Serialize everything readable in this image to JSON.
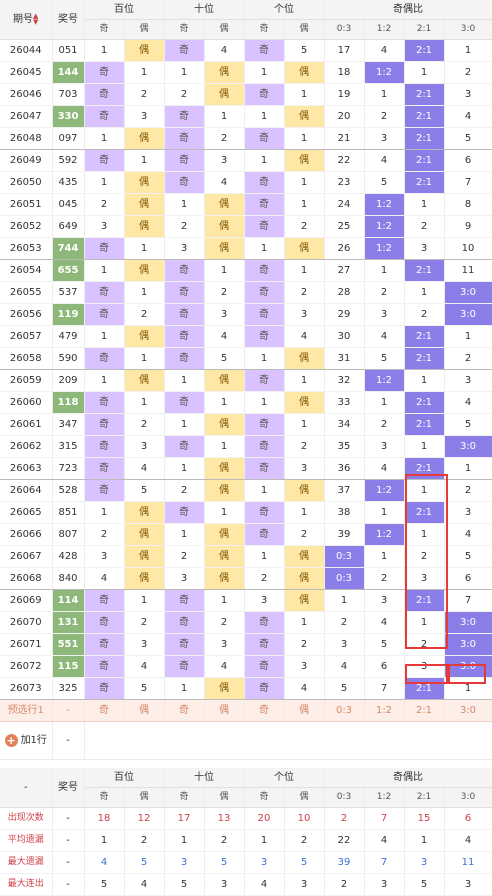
{
  "header": {
    "issue_label": "期号",
    "prize_label": "奖号",
    "hundreds_label": "百位",
    "tens_label": "十位",
    "ones_label": "个位",
    "ratio_label": "奇偶比",
    "odd": "奇",
    "even": "偶",
    "ratios": [
      "0:3",
      "1:2",
      "2:1",
      "3:0"
    ]
  },
  "rows": [
    {
      "issue": "26044",
      "num": "051",
      "won": false,
      "h": [
        "1",
        "偶"
      ],
      "hc": [
        "",
        "o"
      ],
      "t": [
        "奇",
        "4"
      ],
      "tc": [
        "j",
        ""
      ],
      "u": [
        "奇",
        "5"
      ],
      "uc": [
        "j",
        ""
      ],
      "r": [
        "17",
        "4",
        "2:1",
        "1"
      ],
      "rc": [
        "",
        "",
        "hot",
        ""
      ],
      "grpend": false
    },
    {
      "issue": "26045",
      "num": "144",
      "won": true,
      "h": [
        "奇",
        "1"
      ],
      "hc": [
        "j",
        ""
      ],
      "t": [
        "1",
        "偶"
      ],
      "tc": [
        "",
        "o"
      ],
      "u": [
        "1",
        "偶"
      ],
      "uc": [
        "",
        "o"
      ],
      "r": [
        "18",
        "1:2",
        "1",
        "2"
      ],
      "rc": [
        "",
        "hot",
        "",
        ""
      ],
      "grpend": false
    },
    {
      "issue": "26046",
      "num": "703",
      "won": false,
      "h": [
        "奇",
        "2"
      ],
      "hc": [
        "j",
        ""
      ],
      "t": [
        "2",
        "偶"
      ],
      "tc": [
        "",
        "o"
      ],
      "u": [
        "奇",
        "1"
      ],
      "uc": [
        "j",
        ""
      ],
      "r": [
        "19",
        "1",
        "2:1",
        "3"
      ],
      "rc": [
        "",
        "",
        "hot",
        ""
      ],
      "grpend": false
    },
    {
      "issue": "26047",
      "num": "330",
      "won": true,
      "h": [
        "奇",
        "3"
      ],
      "hc": [
        "j",
        ""
      ],
      "t": [
        "奇",
        "1"
      ],
      "tc": [
        "j",
        ""
      ],
      "u": [
        "1",
        "偶"
      ],
      "uc": [
        "",
        "o"
      ],
      "r": [
        "20",
        "2",
        "2:1",
        "4"
      ],
      "rc": [
        "",
        "",
        "hot",
        ""
      ],
      "grpend": false
    },
    {
      "issue": "26048",
      "num": "097",
      "won": false,
      "h": [
        "1",
        "偶"
      ],
      "hc": [
        "",
        "o"
      ],
      "t": [
        "奇",
        "2"
      ],
      "tc": [
        "j",
        ""
      ],
      "u": [
        "奇",
        "1"
      ],
      "uc": [
        "j",
        ""
      ],
      "r": [
        "21",
        "3",
        "2:1",
        "5"
      ],
      "rc": [
        "",
        "",
        "hot",
        ""
      ],
      "grpend": true
    },
    {
      "issue": "26049",
      "num": "592",
      "won": false,
      "h": [
        "奇",
        "1"
      ],
      "hc": [
        "j",
        ""
      ],
      "t": [
        "奇",
        "3"
      ],
      "tc": [
        "j",
        ""
      ],
      "u": [
        "1",
        "偶"
      ],
      "uc": [
        "",
        "o"
      ],
      "r": [
        "22",
        "4",
        "2:1",
        "6"
      ],
      "rc": [
        "",
        "",
        "hot",
        ""
      ],
      "grpend": false
    },
    {
      "issue": "26050",
      "num": "435",
      "won": false,
      "h": [
        "1",
        "偶"
      ],
      "hc": [
        "",
        "o"
      ],
      "t": [
        "奇",
        "4"
      ],
      "tc": [
        "j",
        ""
      ],
      "u": [
        "奇",
        "1"
      ],
      "uc": [
        "j",
        ""
      ],
      "r": [
        "23",
        "5",
        "2:1",
        "7"
      ],
      "rc": [
        "",
        "",
        "hot",
        ""
      ],
      "grpend": false
    },
    {
      "issue": "26051",
      "num": "045",
      "won": false,
      "h": [
        "2",
        "偶"
      ],
      "hc": [
        "",
        "o"
      ],
      "t": [
        "1",
        "偶"
      ],
      "tc": [
        "",
        "o"
      ],
      "u": [
        "奇",
        "1"
      ],
      "uc": [
        "j",
        ""
      ],
      "r": [
        "24",
        "1:2",
        "1",
        "8"
      ],
      "rc": [
        "",
        "hot",
        "",
        ""
      ],
      "grpend": false
    },
    {
      "issue": "26052",
      "num": "649",
      "won": false,
      "h": [
        "3",
        "偶"
      ],
      "hc": [
        "",
        "o"
      ],
      "t": [
        "2",
        "偶"
      ],
      "tc": [
        "",
        "o"
      ],
      "u": [
        "奇",
        "2"
      ],
      "uc": [
        "j",
        ""
      ],
      "r": [
        "25",
        "1:2",
        "2",
        "9"
      ],
      "rc": [
        "",
        "hot",
        "",
        ""
      ],
      "grpend": false
    },
    {
      "issue": "26053",
      "num": "744",
      "won": true,
      "h": [
        "奇",
        "1"
      ],
      "hc": [
        "j",
        ""
      ],
      "t": [
        "3",
        "偶"
      ],
      "tc": [
        "",
        "o"
      ],
      "u": [
        "1",
        "偶"
      ],
      "uc": [
        "",
        "o"
      ],
      "r": [
        "26",
        "1:2",
        "3",
        "10"
      ],
      "rc": [
        "",
        "hot",
        "",
        ""
      ],
      "grpend": true
    },
    {
      "issue": "26054",
      "num": "655",
      "won": true,
      "h": [
        "1",
        "偶"
      ],
      "hc": [
        "",
        "o"
      ],
      "t": [
        "奇",
        "1"
      ],
      "tc": [
        "j",
        ""
      ],
      "u": [
        "奇",
        "1"
      ],
      "uc": [
        "j",
        ""
      ],
      "r": [
        "27",
        "1",
        "2:1",
        "11"
      ],
      "rc": [
        "",
        "",
        "hot",
        ""
      ],
      "grpend": false
    },
    {
      "issue": "26055",
      "num": "537",
      "won": false,
      "h": [
        "奇",
        "1"
      ],
      "hc": [
        "j",
        ""
      ],
      "t": [
        "奇",
        "2"
      ],
      "tc": [
        "j",
        ""
      ],
      "u": [
        "奇",
        "2"
      ],
      "uc": [
        "j",
        ""
      ],
      "r": [
        "28",
        "2",
        "1",
        "3:0"
      ],
      "rc": [
        "",
        "",
        "",
        "hot"
      ],
      "grpend": false
    },
    {
      "issue": "26056",
      "num": "119",
      "won": true,
      "h": [
        "奇",
        "2"
      ],
      "hc": [
        "j",
        ""
      ],
      "t": [
        "奇",
        "3"
      ],
      "tc": [
        "j",
        ""
      ],
      "u": [
        "奇",
        "3"
      ],
      "uc": [
        "j",
        ""
      ],
      "r": [
        "29",
        "3",
        "2",
        "3:0"
      ],
      "rc": [
        "",
        "",
        "",
        "hot"
      ],
      "grpend": false
    },
    {
      "issue": "26057",
      "num": "479",
      "won": false,
      "h": [
        "1",
        "偶"
      ],
      "hc": [
        "",
        "o"
      ],
      "t": [
        "奇",
        "4"
      ],
      "tc": [
        "j",
        ""
      ],
      "u": [
        "奇",
        "4"
      ],
      "uc": [
        "j",
        ""
      ],
      "r": [
        "30",
        "4",
        "2:1",
        "1"
      ],
      "rc": [
        "",
        "",
        "hot",
        ""
      ],
      "grpend": false
    },
    {
      "issue": "26058",
      "num": "590",
      "won": false,
      "h": [
        "奇",
        "1"
      ],
      "hc": [
        "j",
        ""
      ],
      "t": [
        "奇",
        "5"
      ],
      "tc": [
        "j",
        ""
      ],
      "u": [
        "1",
        "偶"
      ],
      "uc": [
        "",
        "o"
      ],
      "r": [
        "31",
        "5",
        "2:1",
        "2"
      ],
      "rc": [
        "",
        "",
        "hot",
        ""
      ],
      "grpend": true
    },
    {
      "issue": "26059",
      "num": "209",
      "won": false,
      "h": [
        "1",
        "偶"
      ],
      "hc": [
        "",
        "o"
      ],
      "t": [
        "1",
        "偶"
      ],
      "tc": [
        "",
        "o"
      ],
      "u": [
        "奇",
        "1"
      ],
      "uc": [
        "j",
        ""
      ],
      "r": [
        "32",
        "1:2",
        "1",
        "3"
      ],
      "rc": [
        "",
        "hot",
        "",
        ""
      ],
      "grpend": false
    },
    {
      "issue": "26060",
      "num": "118",
      "won": true,
      "h": [
        "奇",
        "1"
      ],
      "hc": [
        "j",
        ""
      ],
      "t": [
        "奇",
        "1"
      ],
      "tc": [
        "j",
        ""
      ],
      "u": [
        "1",
        "偶"
      ],
      "uc": [
        "",
        "o"
      ],
      "r": [
        "33",
        "1",
        "2:1",
        "4"
      ],
      "rc": [
        "",
        "",
        "hot",
        ""
      ],
      "grpend": false
    },
    {
      "issue": "26061",
      "num": "347",
      "won": false,
      "h": [
        "奇",
        "2"
      ],
      "hc": [
        "j",
        ""
      ],
      "t": [
        "1",
        "偶"
      ],
      "tc": [
        "",
        "o"
      ],
      "u": [
        "奇",
        "1"
      ],
      "uc": [
        "j",
        ""
      ],
      "r": [
        "34",
        "2",
        "2:1",
        "5"
      ],
      "rc": [
        "",
        "",
        "hot",
        ""
      ],
      "grpend": false
    },
    {
      "issue": "26062",
      "num": "315",
      "won": false,
      "h": [
        "奇",
        "3"
      ],
      "hc": [
        "j",
        ""
      ],
      "t": [
        "奇",
        "1"
      ],
      "tc": [
        "j",
        ""
      ],
      "u": [
        "奇",
        "2"
      ],
      "uc": [
        "j",
        ""
      ],
      "r": [
        "35",
        "3",
        "1",
        "3:0"
      ],
      "rc": [
        "",
        "",
        "",
        "hot"
      ],
      "grpend": false
    },
    {
      "issue": "26063",
      "num": "723",
      "won": false,
      "h": [
        "奇",
        "4"
      ],
      "hc": [
        "j",
        ""
      ],
      "t": [
        "1",
        "偶"
      ],
      "tc": [
        "",
        "o"
      ],
      "u": [
        "奇",
        "3"
      ],
      "uc": [
        "j",
        ""
      ],
      "r": [
        "36",
        "4",
        "2:1",
        "1"
      ],
      "rc": [
        "",
        "",
        "hot",
        ""
      ],
      "grpend": true
    },
    {
      "issue": "26064",
      "num": "528",
      "won": false,
      "h": [
        "奇",
        "5"
      ],
      "hc": [
        "j",
        ""
      ],
      "t": [
        "2",
        "偶"
      ],
      "tc": [
        "",
        "o"
      ],
      "u": [
        "1",
        "偶"
      ],
      "uc": [
        "",
        "o"
      ],
      "r": [
        "37",
        "1:2",
        "1",
        "2"
      ],
      "rc": [
        "",
        "hot",
        "",
        ""
      ],
      "grpend": false
    },
    {
      "issue": "26065",
      "num": "851",
      "won": false,
      "h": [
        "1",
        "偶"
      ],
      "hc": [
        "",
        "o"
      ],
      "t": [
        "奇",
        "1"
      ],
      "tc": [
        "j",
        ""
      ],
      "u": [
        "奇",
        "1"
      ],
      "uc": [
        "j",
        ""
      ],
      "r": [
        "38",
        "1",
        "2:1",
        "3"
      ],
      "rc": [
        "",
        "",
        "hot",
        ""
      ],
      "grpend": false
    },
    {
      "issue": "26066",
      "num": "807",
      "won": false,
      "h": [
        "2",
        "偶"
      ],
      "hc": [
        "",
        "o"
      ],
      "t": [
        "1",
        "偶"
      ],
      "tc": [
        "",
        "o"
      ],
      "u": [
        "奇",
        "2"
      ],
      "uc": [
        "j",
        ""
      ],
      "r": [
        "39",
        "1:2",
        "1",
        "4"
      ],
      "rc": [
        "",
        "hot",
        "",
        ""
      ],
      "grpend": false
    },
    {
      "issue": "26067",
      "num": "428",
      "won": false,
      "h": [
        "3",
        "偶"
      ],
      "hc": [
        "",
        "o"
      ],
      "t": [
        "2",
        "偶"
      ],
      "tc": [
        "",
        "o"
      ],
      "u": [
        "1",
        "偶"
      ],
      "uc": [
        "",
        "o"
      ],
      "r": [
        "0:3",
        "1",
        "2",
        "5"
      ],
      "rc": [
        "hot",
        "",
        "",
        ""
      ],
      "grpend": false
    },
    {
      "issue": "26068",
      "num": "840",
      "won": false,
      "h": [
        "4",
        "偶"
      ],
      "hc": [
        "",
        "o"
      ],
      "t": [
        "3",
        "偶"
      ],
      "tc": [
        "",
        "o"
      ],
      "u": [
        "2",
        "偶"
      ],
      "uc": [
        "",
        "o"
      ],
      "r": [
        "0:3",
        "2",
        "3",
        "6"
      ],
      "rc": [
        "hot",
        "",
        "",
        ""
      ],
      "grpend": true
    },
    {
      "issue": "26069",
      "num": "114",
      "won": true,
      "h": [
        "奇",
        "1"
      ],
      "hc": [
        "j",
        ""
      ],
      "t": [
        "奇",
        "1"
      ],
      "tc": [
        "j",
        ""
      ],
      "u": [
        "3",
        "偶"
      ],
      "uc": [
        "",
        "o"
      ],
      "r": [
        "1",
        "3",
        "2:1",
        "7"
      ],
      "rc": [
        "",
        "",
        "hot",
        ""
      ],
      "grpend": false
    },
    {
      "issue": "26070",
      "num": "131",
      "won": true,
      "h": [
        "奇",
        "2"
      ],
      "hc": [
        "j",
        ""
      ],
      "t": [
        "奇",
        "2"
      ],
      "tc": [
        "j",
        ""
      ],
      "u": [
        "奇",
        "1"
      ],
      "uc": [
        "j",
        ""
      ],
      "r": [
        "2",
        "4",
        "1",
        "3:0"
      ],
      "rc": [
        "",
        "",
        "",
        "hot"
      ],
      "grpend": false
    },
    {
      "issue": "26071",
      "num": "551",
      "won": true,
      "h": [
        "奇",
        "3"
      ],
      "hc": [
        "j",
        ""
      ],
      "t": [
        "奇",
        "3"
      ],
      "tc": [
        "j",
        ""
      ],
      "u": [
        "奇",
        "2"
      ],
      "uc": [
        "j",
        ""
      ],
      "r": [
        "3",
        "5",
        "2",
        "3:0"
      ],
      "rc": [
        "",
        "",
        "",
        "hot"
      ],
      "grpend": false
    },
    {
      "issue": "26072",
      "num": "115",
      "won": true,
      "h": [
        "奇",
        "4"
      ],
      "hc": [
        "j",
        ""
      ],
      "t": [
        "奇",
        "4"
      ],
      "tc": [
        "j",
        ""
      ],
      "u": [
        "奇",
        "3"
      ],
      "uc": [
        "j",
        ""
      ],
      "r": [
        "4",
        "6",
        "3",
        "3:0"
      ],
      "rc": [
        "",
        "",
        "",
        "hot"
      ],
      "grpend": false
    },
    {
      "issue": "26073",
      "num": "325",
      "won": false,
      "h": [
        "奇",
        "5"
      ],
      "hc": [
        "j",
        ""
      ],
      "t": [
        "1",
        "偶"
      ],
      "tc": [
        "",
        "o"
      ],
      "u": [
        "奇",
        "4"
      ],
      "uc": [
        "j",
        ""
      ],
      "r": [
        "5",
        "7",
        "2:1",
        "1"
      ],
      "rc": [
        "",
        "",
        "hot",
        ""
      ],
      "grpend": true
    }
  ],
  "prediction": {
    "label": "预选行1",
    "num": "-",
    "issue_dash": "-",
    "cells": [
      "奇",
      "偶",
      "奇",
      "偶",
      "奇",
      "偶",
      "0:3",
      "1:2",
      "2:1",
      "3:0"
    ]
  },
  "add_row": {
    "label": "加1行",
    "dash": "-"
  },
  "stats": {
    "dash": "-",
    "prize_label": "奖号",
    "rows": [
      {
        "label": "出现次数",
        "values": [
          "18",
          "12",
          "17",
          "13",
          "20",
          "10",
          "2",
          "7",
          "15",
          "6"
        ],
        "color": "red"
      },
      {
        "label": "平均遗漏",
        "values": [
          "1",
          "2",
          "1",
          "2",
          "1",
          "2",
          "22",
          "4",
          "1",
          "4"
        ],
        "color": "dark"
      },
      {
        "label": "最大遗漏",
        "values": [
          "4",
          "5",
          "3",
          "5",
          "3",
          "5",
          "39",
          "7",
          "3",
          "11"
        ],
        "color": "blue"
      },
      {
        "label": "最大连出",
        "values": [
          "5",
          "4",
          "5",
          "3",
          "4",
          "3",
          "2",
          "3",
          "5",
          "3"
        ],
        "color": "dark"
      }
    ]
  },
  "colors": {
    "odd_bg": "#d9c2ff",
    "even_bg": "#ffe7a6",
    "hot": "#8c7ee8",
    "won": "#8db87a",
    "highlight": "#e53a3a"
  }
}
